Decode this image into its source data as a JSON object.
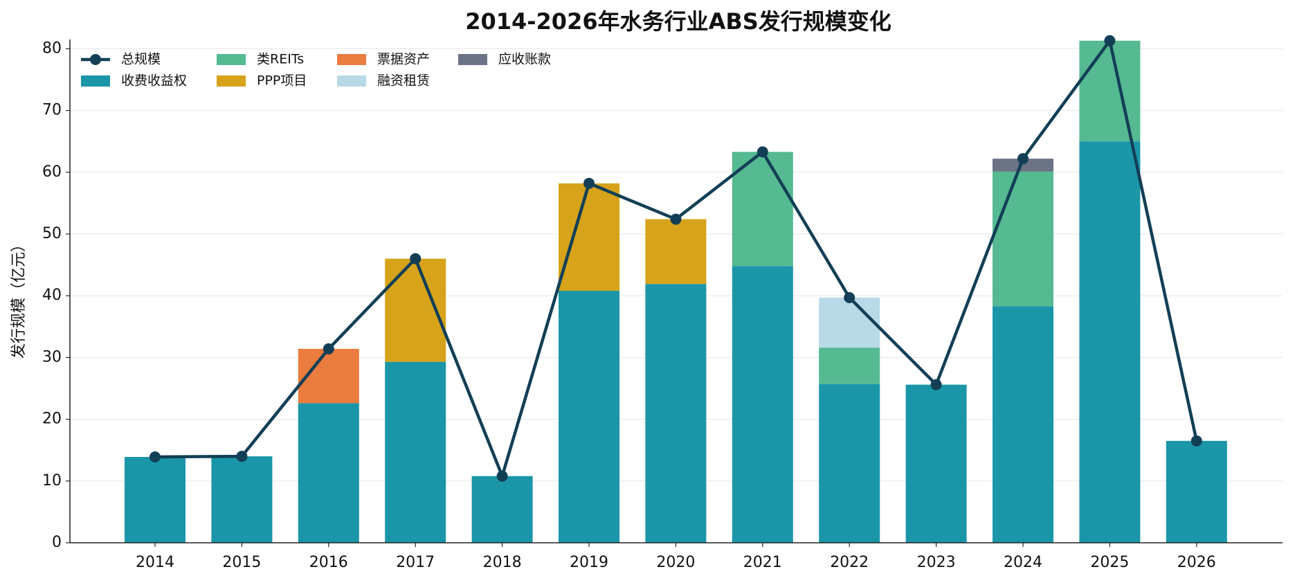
{
  "chart_data": {
    "type": "stacked-bar-line",
    "title": "2014-2026年水务行业ABS发行规模变化",
    "y_label": "发行规模（亿元）",
    "categories": [
      "2014",
      "2015",
      "2016",
      "2017",
      "2018",
      "2019",
      "2020",
      "2021",
      "2022",
      "2023",
      "2024",
      "2025",
      "2026"
    ],
    "series": [
      {
        "name": "收费收益权",
        "color": "#1a96a8",
        "values": [
          13.9,
          14.0,
          22.6,
          29.3,
          10.8,
          40.8,
          41.9,
          44.8,
          25.7,
          25.6,
          38.3,
          65.0,
          16.5
        ]
      },
      {
        "name": "类REITs",
        "color": "#55b991",
        "values": [
          null,
          null,
          null,
          null,
          null,
          null,
          null,
          18.5,
          5.9,
          null,
          21.8,
          16.3,
          null
        ]
      },
      {
        "name": "PPP项目",
        "color": "#d6a31b",
        "values": [
          null,
          null,
          null,
          16.7,
          null,
          17.4,
          10.5,
          null,
          null,
          null,
          null,
          null,
          null
        ]
      },
      {
        "name": "票据资产",
        "color": "#e97c3e",
        "values": [
          null,
          null,
          8.8,
          null,
          null,
          null,
          null,
          null,
          null,
          null,
          null,
          null,
          null
        ]
      },
      {
        "name": "融资租赁",
        "color": "#b8d9e6",
        "values": [
          null,
          null,
          null,
          null,
          null,
          null,
          null,
          null,
          8.1,
          null,
          null,
          null,
          null
        ]
      },
      {
        "name": "应收账款",
        "color": "#6b7385",
        "values": [
          null,
          null,
          null,
          null,
          null,
          null,
          null,
          null,
          null,
          null,
          2.1,
          null,
          null
        ]
      }
    ],
    "total": {
      "name": "总规模",
      "color": "#123f56",
      "values": [
        13.9,
        14.0,
        31.4,
        46.0,
        10.8,
        58.2,
        52.4,
        63.3,
        39.7,
        25.6,
        62.2,
        81.3,
        16.5
      ]
    },
    "ylim": [
      0,
      81.5
    ],
    "yticks": [
      0,
      10,
      20,
      30,
      40,
      50,
      60,
      70,
      80
    ],
    "grid": true,
    "legend": "upper left"
  }
}
